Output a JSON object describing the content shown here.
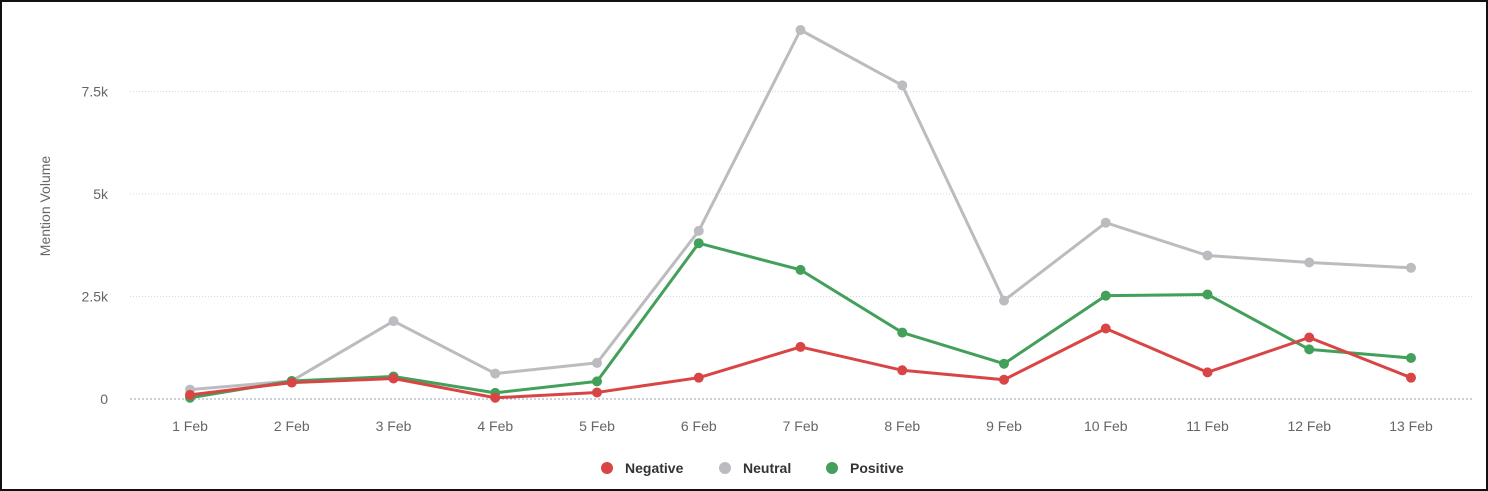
{
  "chart_data": {
    "type": "line",
    "ylabel": "Mention Volume",
    "ylim": [
      0,
      9000
    ],
    "y_ticks": [
      {
        "value": 0,
        "label": "0"
      },
      {
        "value": 2500,
        "label": "2.5k"
      },
      {
        "value": 5000,
        "label": "5k"
      },
      {
        "value": 7500,
        "label": "7.5k"
      }
    ],
    "categories": [
      "1 Feb",
      "2 Feb",
      "3 Feb",
      "4 Feb",
      "5 Feb",
      "6 Feb",
      "7 Feb",
      "8 Feb",
      "9 Feb",
      "10 Feb",
      "11 Feb",
      "12 Feb",
      "13 Feb"
    ],
    "grid": true,
    "legend_position": "bottom-center",
    "series": [
      {
        "name": "Neutral",
        "color": "#bcbcc0",
        "values": [
          230,
          440,
          1900,
          620,
          880,
          4100,
          9000,
          7650,
          2400,
          4300,
          3500,
          3330,
          3200
        ]
      },
      {
        "name": "Positive",
        "color": "#43a05a",
        "values": [
          30,
          440,
          550,
          150,
          430,
          3800,
          3150,
          1620,
          860,
          2520,
          2550,
          1210,
          1000
        ]
      },
      {
        "name": "Negative",
        "color": "#d94545",
        "values": [
          100,
          400,
          500,
          30,
          160,
          520,
          1270,
          700,
          470,
          1720,
          650,
          1500,
          520
        ]
      }
    ],
    "legend": [
      {
        "name": "Negative",
        "color": "#d94545"
      },
      {
        "name": "Neutral",
        "color": "#bcbcc0"
      },
      {
        "name": "Positive",
        "color": "#43a05a"
      }
    ]
  }
}
